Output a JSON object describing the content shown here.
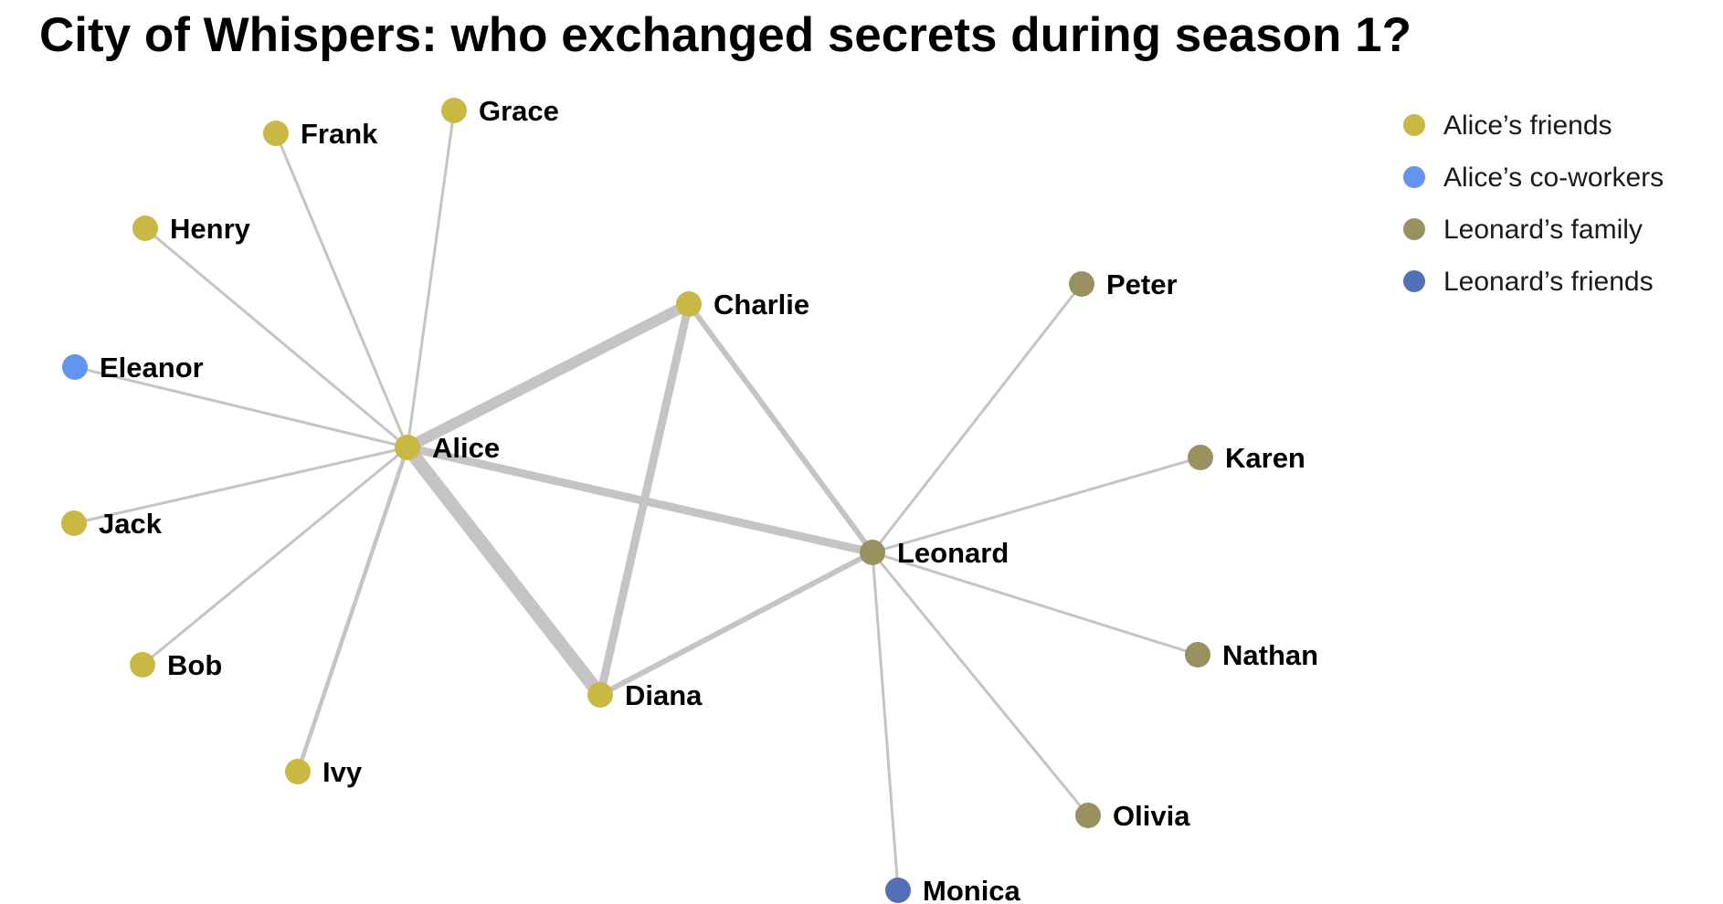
{
  "title": "City of Whispers: who exchanged secrets during season 1?",
  "groups": [
    {
      "id": "alice_friends",
      "label": "Alice’s friends",
      "color": "#c9b843"
    },
    {
      "id": "alice_coworkers",
      "label": "Alice’s co-workers",
      "color": "#6394f0"
    },
    {
      "id": "leonard_family",
      "label": "Leonard’s family",
      "color": "#9a9161"
    },
    {
      "id": "leonard_friends",
      "label": "Leonard’s friends",
      "color": "#5470b4"
    }
  ],
  "nodes": [
    {
      "name": "Alice",
      "group": "alice_friends"
    },
    {
      "name": "Bob",
      "group": "alice_friends"
    },
    {
      "name": "Charlie",
      "group": "alice_friends"
    },
    {
      "name": "Diana",
      "group": "alice_friends"
    },
    {
      "name": "Eleanor",
      "group": "alice_coworkers"
    },
    {
      "name": "Frank",
      "group": "alice_friends"
    },
    {
      "name": "Grace",
      "group": "alice_friends"
    },
    {
      "name": "Henry",
      "group": "alice_friends"
    },
    {
      "name": "Ivy",
      "group": "alice_friends"
    },
    {
      "name": "Jack",
      "group": "alice_friends"
    },
    {
      "name": "Leonard",
      "group": "leonard_family"
    },
    {
      "name": "Karen",
      "group": "leonard_family"
    },
    {
      "name": "Monica",
      "group": "leonard_friends"
    },
    {
      "name": "Nathan",
      "group": "leonard_family"
    },
    {
      "name": "Olivia",
      "group": "leonard_family"
    },
    {
      "name": "Peter",
      "group": "leonard_family"
    }
  ],
  "edges": [
    {
      "source": "Alice",
      "target": "Diana",
      "weight": 5
    },
    {
      "source": "Alice",
      "target": "Charlie",
      "weight": 4
    },
    {
      "source": "Charlie",
      "target": "Diana",
      "weight": 3
    },
    {
      "source": "Alice",
      "target": "Leonard",
      "weight": 3
    },
    {
      "source": "Charlie",
      "target": "Leonard",
      "weight": 2
    },
    {
      "source": "Diana",
      "target": "Leonard",
      "weight": 2
    },
    {
      "source": "Alice",
      "target": "Ivy",
      "weight": 1.5
    },
    {
      "source": "Alice",
      "target": "Bob",
      "weight": 1
    },
    {
      "source": "Alice",
      "target": "Jack",
      "weight": 1
    },
    {
      "source": "Alice",
      "target": "Eleanor",
      "weight": 1
    },
    {
      "source": "Alice",
      "target": "Henry",
      "weight": 1
    },
    {
      "source": "Alice",
      "target": "Frank",
      "weight": 1
    },
    {
      "source": "Alice",
      "target": "Grace",
      "weight": 1
    },
    {
      "source": "Leonard",
      "target": "Peter",
      "weight": 1
    },
    {
      "source": "Leonard",
      "target": "Karen",
      "weight": 1
    },
    {
      "source": "Leonard",
      "target": "Nathan",
      "weight": 1
    },
    {
      "source": "Leonard",
      "target": "Olivia",
      "weight": 1
    },
    {
      "source": "Leonard",
      "target": "Monica",
      "weight": 1
    }
  ]
}
